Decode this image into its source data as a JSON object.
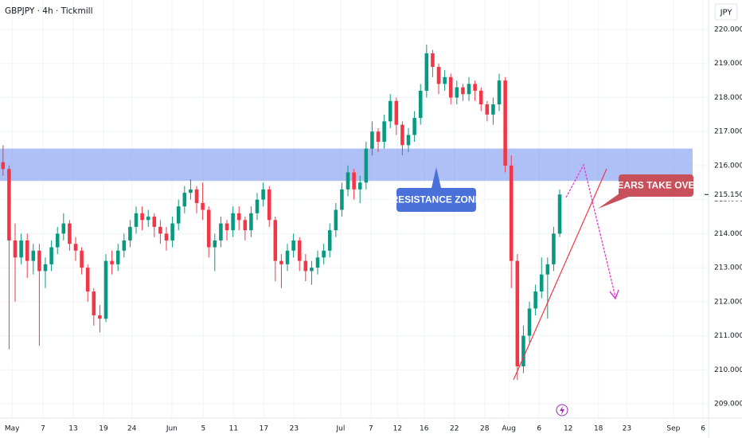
{
  "chart_data": {
    "type": "candlestick",
    "title": "GBPJPY · 4h · Tickmill",
    "currency": "JPY",
    "up_color": "#089981",
    "down_color": "#f23645",
    "grid": true,
    "open": [
      216.1,
      215.9,
      213.8,
      213.3,
      213.8,
      213.2,
      213.5,
      212.9,
      213.1,
      213.6,
      214.0,
      214.3,
      213.7,
      213.5,
      213.0,
      212.3,
      211.6,
      211.5,
      213.2,
      213.1,
      213.5,
      213.8,
      214.2,
      214.6,
      214.4,
      214.5,
      214.2,
      214.0,
      213.8,
      214.3,
      214.8,
      215.2,
      215.3,
      214.9,
      214.7,
      213.6,
      213.8,
      214.3,
      214.1,
      214.6,
      214.4,
      214.1,
      214.6,
      215.0,
      215.3,
      214.4,
      213.2,
      213.1,
      213.5,
      213.8,
      213.2,
      212.9,
      213.0,
      213.3,
      213.5,
      214.1,
      214.7,
      215.3,
      215.8,
      215.3,
      215.5,
      216.5,
      217.0,
      216.7,
      217.3,
      217.9,
      217.2,
      216.6,
      216.9,
      217.4,
      218.2,
      219.3,
      218.9,
      218.4,
      218.6,
      218.0,
      218.3,
      218.1,
      218.4,
      218.2,
      217.8,
      217.5,
      217.8,
      218.5,
      216.0,
      213.2,
      210.1,
      211.0,
      211.8,
      212.3,
      212.8,
      213.1,
      214.0
    ],
    "high": [
      216.6,
      216.0,
      214.3,
      214.0,
      214.0,
      213.7,
      213.7,
      213.3,
      213.8,
      214.2,
      214.6,
      214.4,
      213.9,
      213.6,
      213.1,
      212.4,
      211.9,
      213.4,
      213.5,
      213.7,
      214.0,
      214.4,
      214.8,
      214.8,
      214.7,
      214.6,
      214.4,
      214.2,
      214.5,
      215.0,
      215.4,
      215.6,
      215.4,
      215.5,
      214.8,
      214.0,
      214.5,
      214.4,
      214.8,
      214.8,
      214.5,
      214.8,
      215.2,
      215.5,
      215.4,
      214.5,
      213.4,
      213.7,
      214.0,
      213.9,
      213.4,
      213.2,
      213.5,
      213.7,
      214.3,
      214.9,
      215.5,
      216.0,
      215.9,
      215.7,
      216.7,
      217.3,
      217.1,
      217.5,
      218.1,
      218.0,
      217.3,
      217.1,
      217.6,
      218.4,
      219.55,
      219.4,
      219.0,
      218.8,
      218.7,
      218.5,
      218.4,
      218.6,
      218.5,
      218.3,
      217.9,
      218.0,
      218.7,
      218.6,
      216.3,
      213.4,
      211.3,
      212.0,
      212.5,
      213.3,
      213.3,
      214.2,
      215.3
    ],
    "low": [
      215.7,
      210.6,
      212.0,
      213.1,
      212.7,
      212.8,
      210.7,
      212.4,
      212.9,
      213.4,
      213.8,
      213.5,
      213.2,
      212.8,
      212.0,
      211.3,
      211.1,
      211.4,
      212.8,
      212.9,
      213.3,
      213.6,
      214.0,
      214.1,
      214.2,
      213.9,
      213.7,
      213.5,
      213.6,
      214.1,
      214.6,
      215.0,
      214.6,
      214.4,
      213.3,
      212.9,
      213.6,
      213.8,
      213.9,
      214.1,
      213.8,
      213.9,
      214.4,
      214.8,
      214.2,
      212.6,
      212.4,
      212.9,
      213.3,
      212.9,
      212.6,
      212.5,
      212.8,
      213.1,
      213.3,
      213.9,
      214.5,
      215.1,
      215.0,
      214.9,
      215.3,
      216.3,
      216.4,
      216.5,
      217.1,
      216.9,
      216.3,
      216.4,
      216.7,
      217.2,
      218.0,
      218.6,
      218.1,
      218.2,
      217.8,
      217.8,
      217.9,
      217.9,
      217.9,
      217.6,
      217.3,
      217.2,
      217.6,
      215.8,
      212.4,
      209.7,
      209.9,
      210.8,
      211.6,
      212.1,
      211.5,
      212.9,
      213.9
    ],
    "close": [
      215.9,
      213.8,
      213.3,
      213.8,
      213.2,
      213.5,
      212.9,
      213.1,
      213.6,
      214.0,
      214.3,
      213.7,
      213.5,
      213.0,
      212.3,
      211.6,
      211.5,
      213.2,
      213.1,
      213.5,
      213.8,
      214.2,
      214.6,
      214.4,
      214.5,
      214.2,
      214.0,
      213.8,
      214.3,
      214.8,
      215.2,
      215.3,
      214.9,
      214.7,
      213.6,
      213.8,
      214.3,
      214.1,
      214.6,
      214.4,
      214.1,
      214.6,
      215.0,
      215.3,
      214.4,
      213.2,
      213.1,
      213.5,
      213.8,
      213.2,
      212.9,
      213.0,
      213.3,
      213.5,
      214.1,
      214.7,
      215.3,
      215.8,
      215.3,
      215.5,
      216.5,
      217.0,
      216.7,
      217.3,
      217.9,
      217.2,
      216.6,
      216.9,
      217.4,
      218.2,
      219.3,
      218.9,
      218.4,
      218.6,
      218.0,
      218.3,
      218.1,
      218.4,
      218.2,
      217.8,
      217.5,
      217.8,
      218.5,
      216.0,
      213.2,
      210.1,
      211.0,
      211.8,
      212.3,
      212.8,
      213.1,
      214.0,
      215.15
    ],
    "xlim": [
      -0.5,
      116.6
    ],
    "xticks": [
      {
        "value": 1.5,
        "label": "May"
      },
      {
        "value": 6.6,
        "label": "7"
      },
      {
        "value": 11.6,
        "label": "13"
      },
      {
        "value": 16.6,
        "label": "19"
      },
      {
        "value": 21.3,
        "label": "24"
      },
      {
        "value": 27.9,
        "label": "Jun"
      },
      {
        "value": 33.1,
        "label": "5"
      },
      {
        "value": 38.1,
        "label": "11"
      },
      {
        "value": 43.1,
        "label": "17"
      },
      {
        "value": 48.1,
        "label": "23"
      },
      {
        "value": 55.8,
        "label": "Jul"
      },
      {
        "value": 60.8,
        "label": "7"
      },
      {
        "value": 65.2,
        "label": "12"
      },
      {
        "value": 69.6,
        "label": "16"
      },
      {
        "value": 74.6,
        "label": "22"
      },
      {
        "value": 79.6,
        "label": "28"
      },
      {
        "value": 83.6,
        "label": "Aug"
      },
      {
        "value": 88.6,
        "label": "6"
      },
      {
        "value": 93.4,
        "label": "12"
      },
      {
        "value": 98.4,
        "label": "18"
      },
      {
        "value": 103.1,
        "label": "23"
      },
      {
        "value": 110.8,
        "label": "Sep"
      },
      {
        "value": 115.7,
        "label": "6"
      }
    ],
    "ylim": [
      208.58,
      220.866
    ],
    "yticks": [
      {
        "value": 209,
        "label": "209.000"
      },
      {
        "value": 210,
        "label": "210.000"
      },
      {
        "value": 211,
        "label": "211.000"
      },
      {
        "value": 212,
        "label": "212.000"
      },
      {
        "value": 213,
        "label": "213.000"
      },
      {
        "value": 214,
        "label": "214.000"
      },
      {
        "value": 215,
        "label": "215.000"
      },
      {
        "value": 216,
        "label": "216.000"
      },
      {
        "value": 217,
        "label": "217.000"
      },
      {
        "value": 218,
        "label": "218.000"
      },
      {
        "value": 219,
        "label": "219.000"
      },
      {
        "value": 220,
        "label": "220.000"
      }
    ],
    "last_price": 215.15,
    "last_price_label": "215.150",
    "resistance_zone": [
      215.55,
      216.5
    ],
    "annotations": [
      "RESISTANCE ZONE",
      "BEARS TAKE OVER"
    ]
  }
}
